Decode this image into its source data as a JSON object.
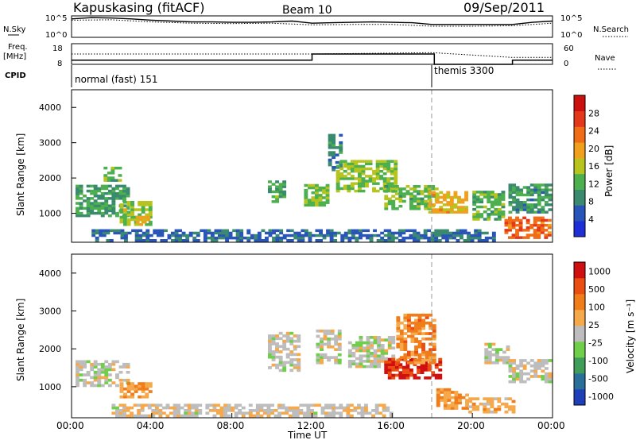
{
  "header": {
    "station": "Kapuskasing (fitACF)",
    "beam": "Beam 10",
    "date": "09/Sep/2011"
  },
  "left_labels": {
    "nsky": "N.Sky",
    "freq": "Freq.",
    "freq_unit": "[MHz]",
    "cpid": "CPID"
  },
  "right_labels": {
    "nsearch": "N.Search",
    "nave": "Nave"
  },
  "noise_axis": {
    "top": "10^5",
    "bottom": "10^0"
  },
  "freq_axis": {
    "ticks": [
      "18",
      "8"
    ]
  },
  "nave_axis": {
    "ticks": [
      "60",
      "0"
    ]
  },
  "cpid_labels": [
    {
      "text": "normal (fast) 151",
      "start_hour": 0
    },
    {
      "text": "themis 3300",
      "start_hour": 18.1
    }
  ],
  "colors": {
    "power": [
      "#1f2fd8",
      "#2a55b8",
      "#3a8a6f",
      "#4cb04f",
      "#b8c41e",
      "#f0a01c",
      "#f06c16",
      "#e5381a",
      "#cc1010"
    ],
    "velocity": [
      "#1f3fb8",
      "#2a6f9a",
      "#3f9d5a",
      "#6fcf4a",
      "#bdbdbd",
      "#f6a94a",
      "#f07d1a",
      "#ea4e12",
      "#d01010"
    ]
  },
  "chart_data": [
    {
      "type": "line",
      "name": "noise-panel",
      "x_range_hours": [
        0,
        24
      ],
      "series": [
        {
          "name": "N.Sky",
          "style": "solid",
          "x": [
            0,
            1,
            2,
            3,
            4,
            5,
            6,
            7,
            8,
            9,
            10,
            11,
            12,
            13,
            14,
            15,
            16,
            17,
            18,
            19,
            20,
            21,
            22,
            23,
            24
          ],
          "y_log": [
            4.3,
            4.6,
            4.5,
            4.3,
            4.0,
            3.8,
            3.6,
            3.6,
            3.5,
            3.5,
            3.6,
            3.8,
            3.3,
            3.4,
            3.5,
            3.6,
            3.5,
            3.4,
            3.0,
            3.0,
            3.0,
            3.0,
            3.0,
            3.5,
            3.8
          ]
        },
        {
          "name": "N.Search",
          "style": "dotted",
          "x": [
            0,
            2,
            4,
            6,
            8,
            10,
            12,
            14,
            16,
            18,
            20,
            22,
            24
          ],
          "y_log": [
            4.0,
            4.1,
            3.6,
            3.3,
            3.2,
            3.3,
            2.9,
            3.0,
            3.0,
            2.6,
            2.6,
            2.7,
            3.3
          ]
        }
      ]
    },
    {
      "type": "line",
      "name": "frequency-nave-panel",
      "x_range_hours": [
        0,
        24
      ],
      "series": [
        {
          "name": "Freq.",
          "unit": "MHz",
          "style": "solid",
          "x": [
            0,
            12,
            12,
            18.1,
            18.1,
            22,
            22,
            24
          ],
          "y": [
            10,
            10,
            13,
            13,
            8,
            8,
            10,
            10
          ]
        },
        {
          "name": "Nave",
          "style": "dotted",
          "x": [
            0,
            6,
            12,
            18,
            22,
            24
          ],
          "y": [
            30,
            30,
            30,
            34,
            20,
            20
          ]
        }
      ]
    },
    {
      "type": "heatmap",
      "name": "power-panel",
      "title": "",
      "xlabel": "",
      "ylabel": "Slant Range [km]",
      "x_range_hours": [
        0,
        24
      ],
      "y_range_km": [
        180,
        4500
      ],
      "y_ticks": [
        "1000",
        "2000",
        "3000",
        "4000"
      ],
      "colorbar_label": "Power [dB]",
      "colorbar_ticks": [
        "4",
        "8",
        "12",
        "16",
        "20",
        "24",
        "28"
      ],
      "value_range": [
        0,
        30
      ],
      "regions": [
        {
          "t": [
            0.2,
            2.8
          ],
          "r": [
            900,
            1800
          ],
          "v": 10
        },
        {
          "t": [
            1.6,
            2.4
          ],
          "r": [
            1900,
            2300
          ],
          "v": 12
        },
        {
          "t": [
            2.4,
            4.0
          ],
          "r": [
            650,
            1300
          ],
          "v": 14
        },
        {
          "t": [
            3.2,
            3.9
          ],
          "r": [
            650,
            950
          ],
          "v": 19
        },
        {
          "t": [
            9.8,
            10.6
          ],
          "r": [
            1300,
            1900
          ],
          "v": 11
        },
        {
          "t": [
            11.6,
            12.8
          ],
          "r": [
            1200,
            1800
          ],
          "v": 13
        },
        {
          "t": [
            12.8,
            13.4
          ],
          "r": [
            2200,
            3200
          ],
          "v": 8
        },
        {
          "t": [
            13.2,
            16.2
          ],
          "r": [
            1600,
            2500
          ],
          "v": 14
        },
        {
          "t": [
            15.6,
            18.2
          ],
          "r": [
            1100,
            1800
          ],
          "v": 12
        },
        {
          "t": [
            17.8,
            19.6
          ],
          "r": [
            1000,
            1600
          ],
          "v": 18
        },
        {
          "t": [
            20.0,
            21.6
          ],
          "r": [
            800,
            1600
          ],
          "v": 12
        },
        {
          "t": [
            21.6,
            23.8
          ],
          "r": [
            280,
            900
          ],
          "v": 22
        },
        {
          "t": [
            21.8,
            23.8
          ],
          "r": [
            1000,
            1800
          ],
          "v": 9
        },
        {
          "t": [
            1.0,
            21.0
          ],
          "r": [
            200,
            550
          ],
          "v": 6
        }
      ]
    },
    {
      "type": "heatmap",
      "name": "velocity-panel",
      "title": "",
      "xlabel": "Time UT",
      "ylabel": "Slant Range [km]",
      "x_range_hours": [
        0,
        24
      ],
      "x_ticks": [
        "00:00",
        "04:00",
        "08:00",
        "12:00",
        "16:00",
        "20:00",
        "00:00"
      ],
      "y_range_km": [
        180,
        4500
      ],
      "y_ticks": [
        "1000",
        "2000",
        "3000",
        "4000"
      ],
      "colorbar_label": "Velocity [m s⁻¹]",
      "colorbar_ticks": [
        "1000",
        "500",
        "100",
        "25",
        "-25",
        "-100",
        "-500",
        "-1000"
      ],
      "value_range": [
        -1000,
        1000
      ],
      "regions": [
        {
          "t": [
            0.2,
            2.8
          ],
          "r": [
            1000,
            1700
          ],
          "v": 0
        },
        {
          "t": [
            2.4,
            4.0
          ],
          "r": [
            700,
            1100
          ],
          "v": -300
        },
        {
          "t": [
            9.8,
            11.4
          ],
          "r": [
            1400,
            2400
          ],
          "v": 0
        },
        {
          "t": [
            12.2,
            13.4
          ],
          "r": [
            1600,
            2500
          ],
          "v": 0
        },
        {
          "t": [
            13.8,
            16.0
          ],
          "r": [
            1500,
            2300
          ],
          "v": 0
        },
        {
          "t": [
            15.6,
            18.4
          ],
          "r": [
            1200,
            1700
          ],
          "v": -800
        },
        {
          "t": [
            16.2,
            18.0
          ],
          "r": [
            1600,
            2900
          ],
          "v": -400
        },
        {
          "t": [
            18.2,
            19.8
          ],
          "r": [
            400,
            900
          ],
          "v": -300
        },
        {
          "t": [
            19.8,
            22.0
          ],
          "r": [
            300,
            700
          ],
          "v": -200
        },
        {
          "t": [
            20.6,
            21.8
          ],
          "r": [
            1600,
            2100
          ],
          "v": 0
        },
        {
          "t": [
            21.8,
            23.8
          ],
          "r": [
            1100,
            1700
          ],
          "v": 0
        },
        {
          "t": [
            2.0,
            16.0
          ],
          "r": [
            200,
            500
          ],
          "v": -60
        }
      ]
    }
  ]
}
